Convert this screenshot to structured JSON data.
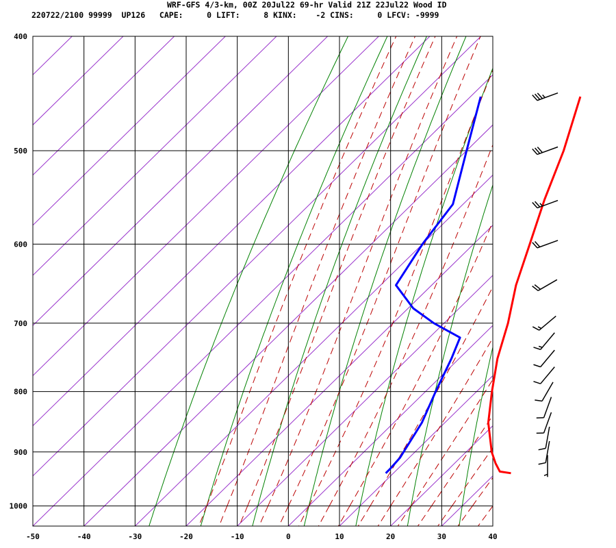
{
  "header": {
    "title": "WRF-GFS 4/3-km, 00Z 20Jul22 69-hr Valid 21Z 22Jul22 Wood ID",
    "stats": "220722/2100 99999  UP126   CAPE:     0 LIFT:     8 KINX:    -2 CINS:     0 LFCV: -9999"
  },
  "chart_data": {
    "type": "line",
    "chart_kind": "skew-T log-p sounding",
    "x_range": [
      -50,
      40
    ],
    "x_ticks": [
      "-50",
      "-40",
      "-30",
      "-20",
      "-10",
      "0",
      "10",
      "20",
      "30",
      "40"
    ],
    "y_range_pressure": [
      1040,
      400
    ],
    "y_scale": "log",
    "y_ticks": [
      "400",
      "500",
      "600",
      "700",
      "800",
      "900",
      "1000"
    ],
    "grid": true,
    "colors": {
      "temperature": "#ff0000",
      "dewpoint": "#0000ff",
      "isotherm": "#9933cc",
      "dry_adiabat": "#008000",
      "moist_adiabat": "#bb0000",
      "grid": "#000000"
    },
    "series": [
      {
        "name": "",
        "role": "temperature",
        "points": [
          {
            "p": 938,
            "t": 33.0
          },
          {
            "p": 935,
            "t": 30.5
          },
          {
            "p": 920,
            "t": 28.0
          },
          {
            "p": 900,
            "t": 25.0
          },
          {
            "p": 850,
            "t": 18.5
          },
          {
            "p": 800,
            "t": 13.0
          },
          {
            "p": 750,
            "t": 7.5
          },
          {
            "p": 700,
            "t": 2.5
          },
          {
            "p": 650,
            "t": -3.5
          },
          {
            "p": 600,
            "t": -9.0
          },
          {
            "p": 550,
            "t": -15.0
          },
          {
            "p": 500,
            "t": -21.0
          },
          {
            "p": 450,
            "t": -28.5
          }
        ]
      },
      {
        "name": "",
        "role": "dewpoint",
        "points": [
          {
            "p": 938,
            "t": 8.5
          },
          {
            "p": 930,
            "t": 8.5
          },
          {
            "p": 910,
            "t": 8.2
          },
          {
            "p": 850,
            "t": 5.5
          },
          {
            "p": 800,
            "t": 2.0
          },
          {
            "p": 750,
            "t": -1.5
          },
          {
            "p": 720,
            "t": -4.0
          },
          {
            "p": 700,
            "t": -12.0
          },
          {
            "p": 680,
            "t": -19.0
          },
          {
            "p": 650,
            "t": -27.0
          },
          {
            "p": 600,
            "t": -30.0
          },
          {
            "p": 555,
            "t": -32.0
          },
          {
            "p": 500,
            "t": -40.0
          },
          {
            "p": 450,
            "t": -48.0
          }
        ]
      }
    ],
    "wind_barbs": [
      {
        "p": 450,
        "dir": 250,
        "spd": 35
      },
      {
        "p": 500,
        "dir": 250,
        "spd": 30
      },
      {
        "p": 555,
        "dir": 250,
        "spd": 25
      },
      {
        "p": 600,
        "dir": 250,
        "spd": 20
      },
      {
        "p": 650,
        "dir": 240,
        "spd": 20
      },
      {
        "p": 700,
        "dir": 230,
        "spd": 15
      },
      {
        "p": 725,
        "dir": 220,
        "spd": 15
      },
      {
        "p": 750,
        "dir": 220,
        "spd": 10
      },
      {
        "p": 775,
        "dir": 220,
        "spd": 10
      },
      {
        "p": 800,
        "dir": 210,
        "spd": 10
      },
      {
        "p": 825,
        "dir": 200,
        "spd": 10
      },
      {
        "p": 850,
        "dir": 200,
        "spd": 10
      },
      {
        "p": 875,
        "dir": 190,
        "spd": 10
      },
      {
        "p": 900,
        "dir": 190,
        "spd": 10
      },
      {
        "p": 925,
        "dir": 180,
        "spd": 5
      }
    ]
  }
}
